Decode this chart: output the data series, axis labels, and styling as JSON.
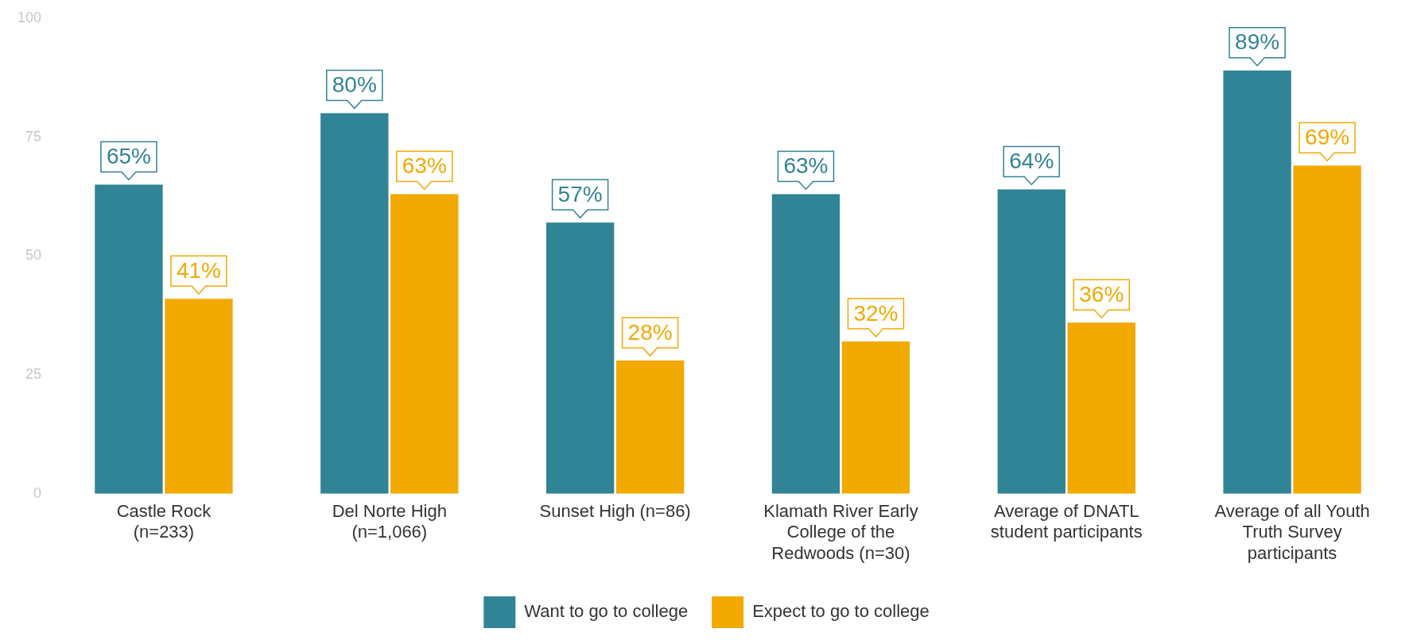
{
  "chart_data": {
    "type": "bar",
    "categories": [
      "Castle Rock (n=233)",
      "Del Norte High (n=1,066)",
      "Sunset High (n=86)",
      "Klamath River Early College of the Redwoods (n=30)",
      "Average of DNATL student participants",
      "Average of all Youth Truth Survey participants"
    ],
    "series": [
      {
        "name": "Want to go to college",
        "color": "#318396",
        "values": [
          65,
          80,
          57,
          63,
          64,
          89
        ],
        "value_labels": [
          "65%",
          "80%",
          "57%",
          "63%",
          "64%",
          "89%"
        ]
      },
      {
        "name": "Expect to go to college",
        "color": "#f2a900",
        "values": [
          41,
          63,
          28,
          32,
          36,
          69
        ],
        "value_labels": [
          "41%",
          "63%",
          "28%",
          "32%",
          "36%",
          "69%"
        ]
      }
    ],
    "ylim": [
      0,
      100
    ],
    "yticks": [
      0,
      25,
      50,
      75,
      100
    ],
    "grid": false,
    "legend": "bottom"
  }
}
